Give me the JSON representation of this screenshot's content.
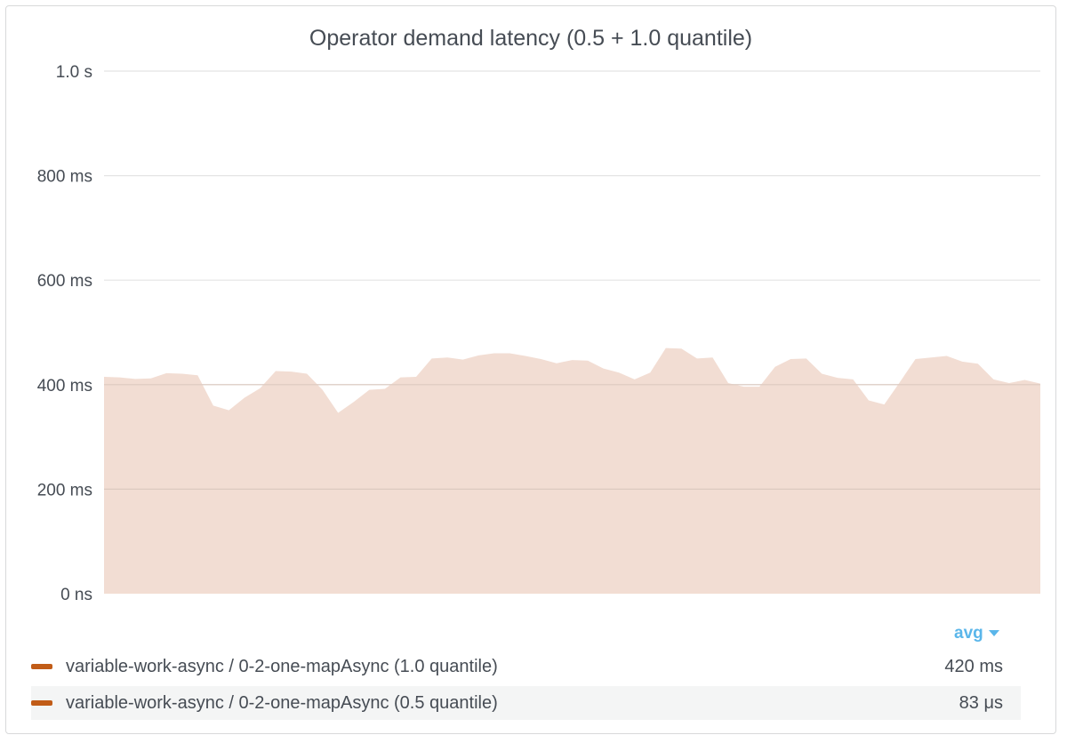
{
  "panel": {
    "title": "Operator demand latency (0.5 + 1.0 quantile)"
  },
  "legend": {
    "column_header": "avg",
    "rows": [
      {
        "label": "variable-work-async / 0-2-one-mapAsync (1.0 quantile)",
        "value": "420 ms",
        "color": "#c15c17"
      },
      {
        "label": "variable-work-async / 0-2-one-mapAsync (0.5 quantile)",
        "value": "83 μs",
        "color": "#c15c17"
      }
    ]
  },
  "chart_data": {
    "type": "area",
    "title": "Operator demand latency (0.5 + 1.0 quantile)",
    "y_unit": "ms",
    "ylim": [
      0,
      1000
    ],
    "yticks": [
      {
        "value": 0,
        "label": "0 ns"
      },
      {
        "value": 200,
        "label": "200 ms"
      },
      {
        "value": 400,
        "label": "400 ms"
      },
      {
        "value": 600,
        "label": "600 ms"
      },
      {
        "value": 800,
        "label": "800 ms"
      },
      {
        "value": 1000,
        "label": "1.0 s"
      }
    ],
    "grid": true,
    "fill_color": "#f2ddd3",
    "series": [
      {
        "name": "variable-work-async / 0-2-one-mapAsync (1.0 quantile)",
        "values": [
          415,
          414,
          411,
          412,
          422,
          421,
          418,
          360,
          351,
          375,
          393,
          426,
          425,
          421,
          390,
          346,
          367,
          390,
          392,
          414,
          415,
          450,
          452,
          448,
          456,
          460,
          460,
          455,
          449,
          441,
          447,
          446,
          431,
          423,
          410,
          423,
          470,
          469,
          450,
          452,
          403,
          396,
          396,
          434,
          449,
          450,
          421,
          413,
          410,
          370,
          362,
          405,
          449,
          452,
          455,
          444,
          440,
          410,
          403,
          409,
          402
        ]
      },
      {
        "name": "variable-work-async / 0-2-one-mapAsync (0.5 quantile)",
        "values": [
          0.083,
          0.083,
          0.083,
          0.083,
          0.083,
          0.083,
          0.083,
          0.083,
          0.083,
          0.083,
          0.083,
          0.083,
          0.083,
          0.083,
          0.083,
          0.083,
          0.083,
          0.083,
          0.083,
          0.083,
          0.083,
          0.083,
          0.083,
          0.083,
          0.083,
          0.083,
          0.083,
          0.083,
          0.083,
          0.083,
          0.083,
          0.083,
          0.083,
          0.083,
          0.083,
          0.083,
          0.083,
          0.083,
          0.083,
          0.083,
          0.083,
          0.083,
          0.083,
          0.083,
          0.083,
          0.083,
          0.083,
          0.083,
          0.083,
          0.083,
          0.083,
          0.083,
          0.083,
          0.083,
          0.083,
          0.083,
          0.083,
          0.083,
          0.083,
          0.083,
          0.083
        ]
      }
    ]
  }
}
